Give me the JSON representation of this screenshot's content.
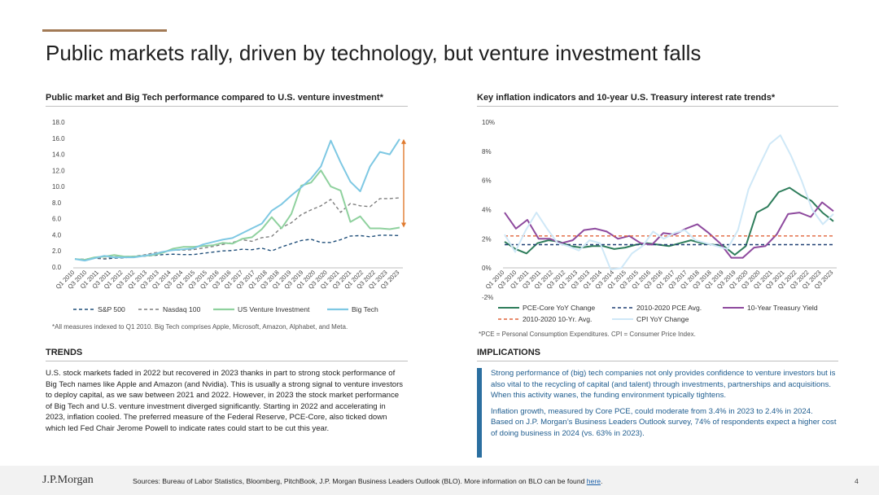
{
  "slide": {
    "title": "Public markets rally, driven by technology, but venture investment falls",
    "page_number": "4"
  },
  "colors": {
    "accent": "#a27a55",
    "sp500": "#1f4e79",
    "nasdaq": "#7f7f7f",
    "venture": "#8fd19e",
    "bigtech": "#7ec8e3",
    "arrow": "#e07a2e",
    "pce": "#2e7d5b",
    "avg_pce": "#1f3f73",
    "treasury": "#8e4a9e",
    "avg_treasury": "#e0633a",
    "cpi": "#cfe8f7"
  },
  "left_panel": {
    "title": "Public market and Big Tech performance compared to U.S. venture investment*",
    "footnote": "*All measures indexed to Q1 2010. Big Tech comprises Apple, Microsoft, Amazon, Alphabet, and Meta."
  },
  "right_panel": {
    "title": "Key inflation indicators and 10-year U.S. Treasury interest rate trends*",
    "footnote": "*PCE = Personal Consumption Expenditures. CPI = Consumer Price Index."
  },
  "trends": {
    "heading": "TRENDS",
    "body": "U.S. stock markets faded in 2022 but recovered in 2023 thanks in part to strong stock performance of Big Tech names like Apple and Amazon (and Nvidia). This is usually a strong signal to venture investors to deploy capital, as we saw between 2021 and 2022. However, in 2023 the stock market performance of Big Tech and U.S. venture investment diverged significantly. Starting in 2022 and accelerating in 2023, inflation cooled. The preferred measure of the Federal Reserve, PCE-Core, also ticked down which led Fed Chair Jerome Powell to indicate rates could start to be cut this year."
  },
  "implications": {
    "heading": "IMPLICATIONS",
    "para1": "Strong performance of (big) tech companies not only provides confidence to venture investors but is also vital to the recycling of capital (and talent) through investments, partnerships and acquisitions. When this activity wanes, the funding environment typically tightens.",
    "para2": "Inflation growth, measured by Core PCE, could moderate from 3.4% in 2023 to 2.4% in 2024. Based on J.P. Morgan’s Business Leaders Outlook survey, 74% of respondents expect a higher cost of doing business in 2024 (vs. 63% in 2023)."
  },
  "footer": {
    "logo": "J.P.Morgan",
    "sources": "Sources: Bureau of Labor Statistics, Bloomberg, PitchBook, J.P. Morgan Business Leaders Outlook (BLO). More information on BLO can be found ",
    "link_text": "here",
    "period": "."
  },
  "chart_data": [
    {
      "type": "line",
      "title": "Public market and Big Tech performance compared to U.S. venture investment*",
      "x_tick_labels": [
        "Q1 2010",
        "Q3 2010",
        "Q1 2011",
        "Q3 2011",
        "Q1 2012",
        "Q3 2012",
        "Q1 2013",
        "Q3 2013",
        "Q1 2014",
        "Q3 2014",
        "Q1 2015",
        "Q3 2015",
        "Q1 2016",
        "Q3 2016",
        "Q1 2017",
        "Q3 2017",
        "Q1 2018",
        "Q3 2018",
        "Q1 2019",
        "Q3 2019",
        "Q1 2020",
        "Q3 2020",
        "Q1 2021",
        "Q3 2021",
        "Q1 2022",
        "Q3 2022",
        "Q1 2023",
        "Q3 2023"
      ],
      "y_tick_labels": [
        "0.0",
        "2.0",
        "4.0",
        "6.0",
        "8.0",
        "10.0",
        "12.0",
        "14.0",
        "16.0",
        "18.0"
      ],
      "ylim": [
        0,
        18
      ],
      "grid": false,
      "legend_position": "bottom",
      "series": [
        {
          "name": "S&P 500",
          "style": "dashed",
          "values": [
            1.0,
            0.95,
            1.1,
            1.0,
            1.1,
            1.15,
            1.25,
            1.35,
            1.45,
            1.55,
            1.6,
            1.55,
            1.55,
            1.7,
            1.85,
            2.0,
            2.05,
            2.2,
            2.15,
            2.35,
            2.0,
            2.5,
            2.9,
            3.3,
            3.45,
            3.05,
            3.05,
            3.4,
            3.85,
            3.9,
            3.75,
            3.95,
            3.95,
            3.9
          ]
        },
        {
          "name": "Nasdaq 100",
          "style": "dashed",
          "values": [
            1.0,
            0.95,
            1.15,
            1.05,
            1.25,
            1.3,
            1.35,
            1.5,
            1.75,
            1.9,
            2.1,
            2.1,
            2.15,
            2.35,
            2.55,
            2.8,
            3.05,
            3.4,
            3.2,
            3.65,
            3.8,
            4.9,
            5.5,
            6.5,
            7.1,
            7.6,
            8.4,
            6.8,
            7.9,
            7.6,
            7.5,
            8.5,
            8.5,
            8.6
          ]
        },
        {
          "name": "US Venture Investment",
          "style": "solid",
          "values": [
            1.0,
            0.9,
            1.2,
            1.3,
            1.5,
            1.3,
            1.3,
            1.4,
            1.5,
            1.8,
            2.3,
            2.5,
            2.5,
            2.6,
            2.7,
            3.0,
            2.9,
            3.5,
            3.7,
            4.7,
            6.2,
            4.8,
            6.6,
            10.1,
            10.5,
            12.0,
            10.0,
            9.5,
            5.6,
            6.3,
            4.8,
            4.8,
            4.7,
            4.9
          ]
        },
        {
          "name": "Big Tech",
          "style": "solid",
          "values": [
            1.0,
            0.8,
            1.1,
            1.4,
            1.2,
            1.2,
            1.2,
            1.4,
            1.6,
            1.9,
            2.1,
            2.2,
            2.3,
            2.8,
            3.1,
            3.4,
            3.6,
            4.2,
            4.8,
            5.4,
            7.0,
            7.8,
            8.9,
            9.9,
            11.0,
            12.5,
            15.7,
            13.0,
            10.6,
            9.4,
            12.5,
            14.3,
            14.0,
            15.9
          ]
        }
      ],
      "annotation": "difference arrow between Big Tech and US Venture Investment at latest quarter"
    },
    {
      "type": "line",
      "title": "Key inflation indicators and 10-year U.S. Treasury interest rate trends*",
      "x_tick_labels": [
        "Q1 2010",
        "Q3 2010",
        "Q1 2011",
        "Q3 2011",
        "Q1 2012",
        "Q3 2012",
        "Q1 2013",
        "Q3 2013",
        "Q1 2014",
        "Q3 2014",
        "Q1 2015",
        "Q3 2015",
        "Q1 2016",
        "Q3 2016",
        "Q1 2017",
        "Q3 2017",
        "Q1 2018",
        "Q3 2018",
        "Q1 2019",
        "Q3 2019",
        "Q1 2020",
        "Q3 2020",
        "Q1 2021",
        "Q3 2021",
        "Q1 2022",
        "Q3 2022",
        "Q1 2023",
        "Q3 2023"
      ],
      "y_tick_labels": [
        "-2%",
        "0%",
        "2%",
        "4%",
        "6%",
        "8%",
        "10%"
      ],
      "ylim": [
        -2,
        10
      ],
      "grid": false,
      "legend_position": "bottom",
      "series": [
        {
          "name": "PCE-Core YoY Change",
          "style": "solid",
          "values": [
            1.8,
            1.3,
            1.0,
            1.7,
            1.9,
            1.8,
            1.5,
            1.4,
            1.5,
            1.5,
            1.3,
            1.4,
            1.6,
            1.7,
            1.6,
            1.5,
            1.7,
            1.9,
            1.7,
            1.6,
            1.5,
            0.9,
            1.5,
            3.8,
            4.2,
            5.2,
            5.5,
            5.0,
            4.6,
            3.8,
            3.2
          ]
        },
        {
          "name": "2010-2020 PCE Avg.",
          "style": "dashed",
          "values": [
            1.6,
            1.6
          ]
        },
        {
          "name": "10-Year Treasury Yield",
          "style": "solid",
          "values": [
            3.8,
            2.7,
            3.3,
            2.0,
            2.0,
            1.7,
            1.9,
            2.6,
            2.7,
            2.5,
            2.0,
            2.2,
            1.7,
            1.6,
            2.4,
            2.3,
            2.7,
            3.0,
            2.4,
            1.7,
            0.7,
            0.7,
            1.4,
            1.5,
            2.3,
            3.7,
            3.8,
            3.5,
            4.5,
            3.9
          ]
        },
        {
          "name": "2010-2020 10-Yr. Avg.",
          "style": "dashed",
          "values": [
            2.2,
            2.2
          ]
        },
        {
          "name": "CPI YoY Change",
          "style": "solid",
          "values": [
            2.3,
            1.1,
            2.6,
            3.8,
            2.7,
            1.7,
            1.5,
            1.2,
            1.9,
            1.7,
            -0.1,
            0.0,
            1.0,
            1.5,
            2.5,
            2.0,
            2.4,
            2.6,
            1.9,
            1.7,
            1.5,
            1.3,
            2.6,
            5.4,
            7.0,
            8.5,
            9.1,
            7.7,
            6.0,
            4.0,
            3.0,
            3.7
          ]
        }
      ]
    }
  ]
}
